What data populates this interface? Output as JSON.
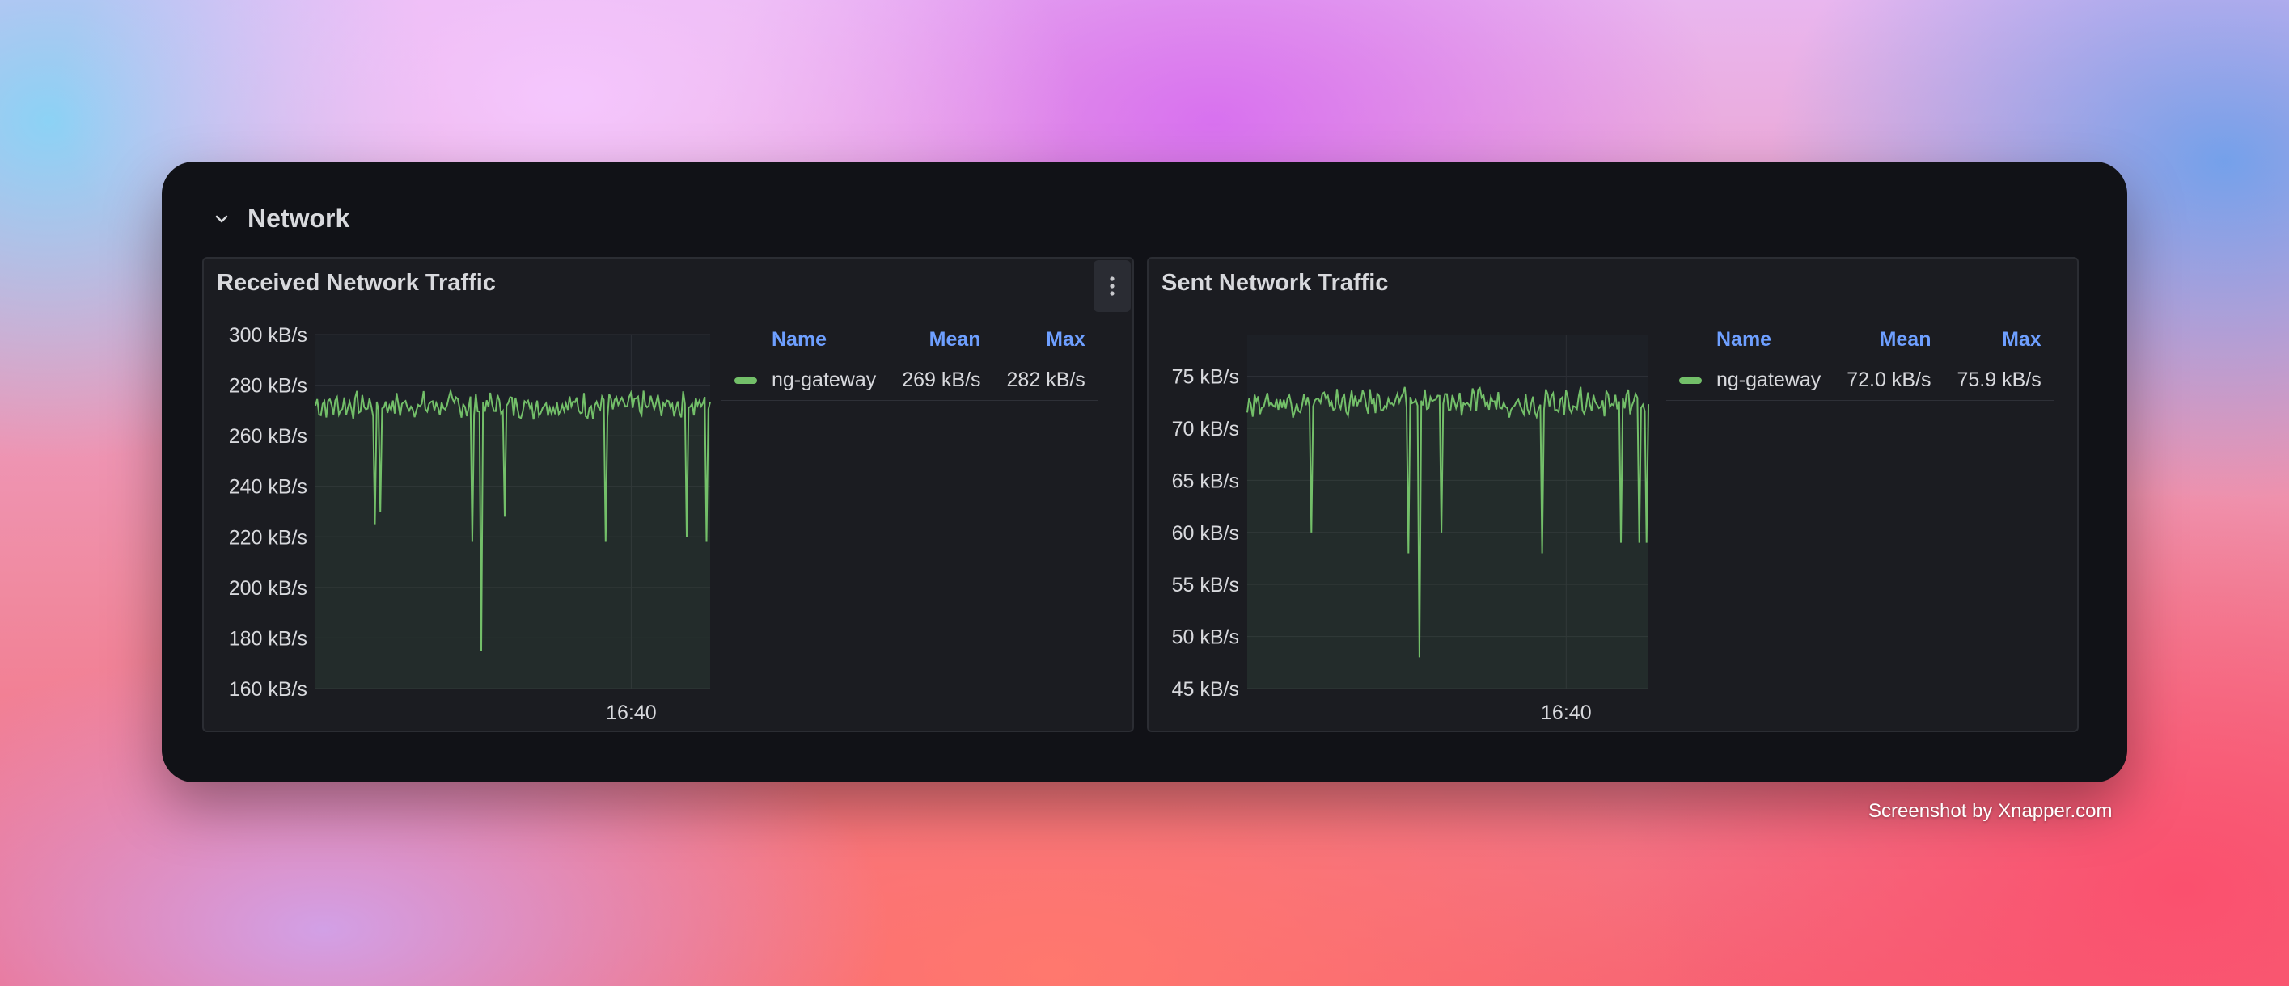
{
  "row": {
    "title": "Network"
  },
  "panels": [
    {
      "title": "Received Network Traffic",
      "legend": {
        "headers": [
          "Name",
          "Mean",
          "Max"
        ],
        "rows": [
          [
            "ng-gateway",
            "269 kB/s",
            "282 kB/s"
          ]
        ]
      }
    },
    {
      "title": "Sent Network Traffic",
      "legend": {
        "headers": [
          "Name",
          "Mean",
          "Max"
        ],
        "rows": [
          [
            "ng-gateway",
            "72.0 kB/s",
            "75.9 kB/s"
          ]
        ]
      }
    }
  ],
  "credit": "Screenshot by Xnapper.com",
  "colors": {
    "series": "#73bf69",
    "legend_header": "#6e9fff",
    "card": "#111217",
    "panel": "#1b1c21"
  },
  "chart_data": [
    {
      "type": "line",
      "series": [
        {
          "name": "ng-gateway"
        }
      ],
      "ylim": [
        160,
        300
      ],
      "y_ticks": [
        "300 kB/s",
        "280 kB/s",
        "260 kB/s",
        "240 kB/s",
        "220 kB/s",
        "200 kB/s",
        "180 kB/s",
        "160 kB/s"
      ],
      "x_ticks": [
        "16:40"
      ],
      "dips": [
        [
          0.15,
          225
        ],
        [
          0.165,
          230
        ],
        [
          0.395,
          218
        ],
        [
          0.42,
          175
        ],
        [
          0.48,
          228
        ],
        [
          0.735,
          218
        ],
        [
          0.94,
          220
        ],
        [
          0.99,
          218
        ]
      ],
      "base": 272,
      "noise": 4
    },
    {
      "type": "line",
      "series": [
        {
          "name": "ng-gateway"
        }
      ],
      "ylim": [
        45,
        79
      ],
      "y_ticks": [
        "75 kB/s",
        "70 kB/s",
        "65 kB/s",
        "60 kB/s",
        "55 kB/s",
        "50 kB/s",
        "45 kB/s"
      ],
      "x_ticks": [
        "16:40"
      ],
      "dips": [
        [
          0.16,
          60
        ],
        [
          0.4,
          58
        ],
        [
          0.43,
          48
        ],
        [
          0.485,
          60
        ],
        [
          0.735,
          58
        ],
        [
          0.93,
          59
        ],
        [
          0.975,
          59
        ],
        [
          0.995,
          59
        ]
      ],
      "base": 72.5,
      "noise": 1
    }
  ]
}
